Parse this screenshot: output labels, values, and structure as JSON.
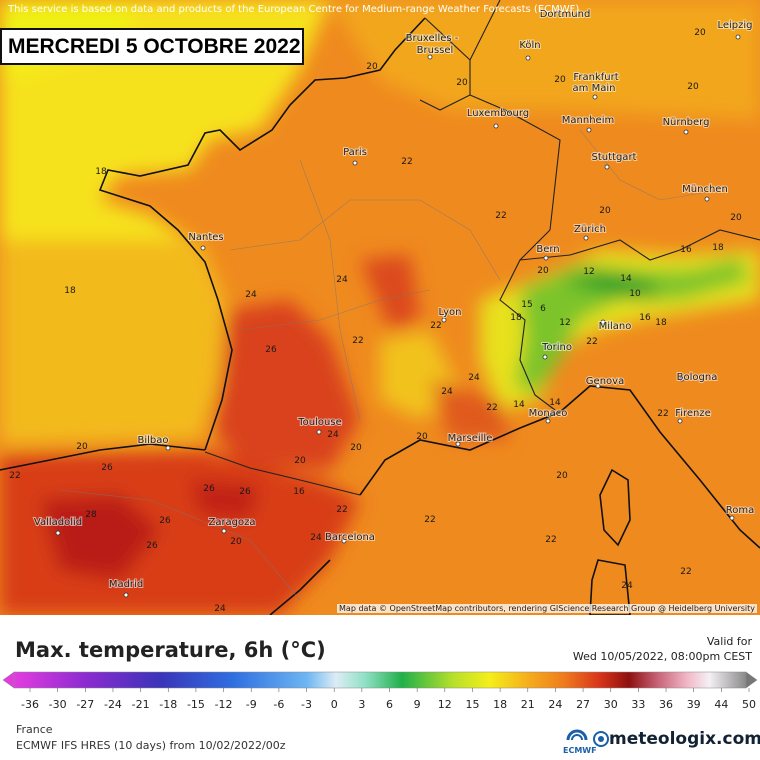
{
  "banner": {
    "notice": "This service is based on data and products of the European Centre for Medium-range Weather Forecasts (ECMWF)",
    "date": "MERCREDI 5 OCTOBRE 2022"
  },
  "map": {
    "cities": [
      "Dortmund",
      "Bruxelles -",
      "Brussel",
      "Köln",
      "Leipzig",
      "Frankfurt",
      "am Main",
      "Luxembourg",
      "Mannheim",
      "Nürnberg",
      "Paris",
      "Stuttgart",
      "München",
      "Nantes",
      "Zürich",
      "Bern",
      "Lyon",
      "Milano",
      "Torino",
      "Genova",
      "Bologna",
      "Toulouse",
      "Monaco",
      "Firenze",
      "Bilbao",
      "Marseille",
      "Valladolid",
      "Zaragoza",
      "Barcelona",
      "Roma",
      "Madrid"
    ],
    "values": [
      20,
      20,
      20,
      20,
      20,
      18,
      22,
      20,
      22,
      20,
      16,
      18,
      20,
      18,
      24,
      24,
      12,
      14,
      10,
      15,
      6,
      12,
      18,
      22,
      16,
      18,
      26,
      22,
      22,
      24,
      24,
      22,
      14,
      14,
      22,
      24,
      20,
      20,
      20,
      22,
      26,
      26,
      20,
      16,
      20,
      26,
      28,
      26,
      20,
      26,
      22,
      22,
      22,
      24,
      22,
      24,
      24
    ],
    "attribution": "Map data © OpenStreetMap contributors, rendering GIScience Research Group @ Heidelberg University"
  },
  "legend": {
    "title": "Max. temperature, 6h (°C)",
    "valid_label": "Valid for",
    "valid_time": "Wed 10/05/2022, 08:00pm CEST",
    "ticks": [
      -36,
      -30,
      -27,
      -24,
      -21,
      -18,
      -15,
      -12,
      -9,
      -6,
      -3,
      0,
      3,
      6,
      9,
      12,
      15,
      18,
      21,
      24,
      27,
      30,
      33,
      36,
      39,
      44,
      50
    ]
  },
  "footer": {
    "region": "France",
    "model": "ECMWF IFS HRES (10 days) from 10/02/2022/00z",
    "ecmwf": "ECMWF",
    "brand": "meteologix.com"
  }
}
